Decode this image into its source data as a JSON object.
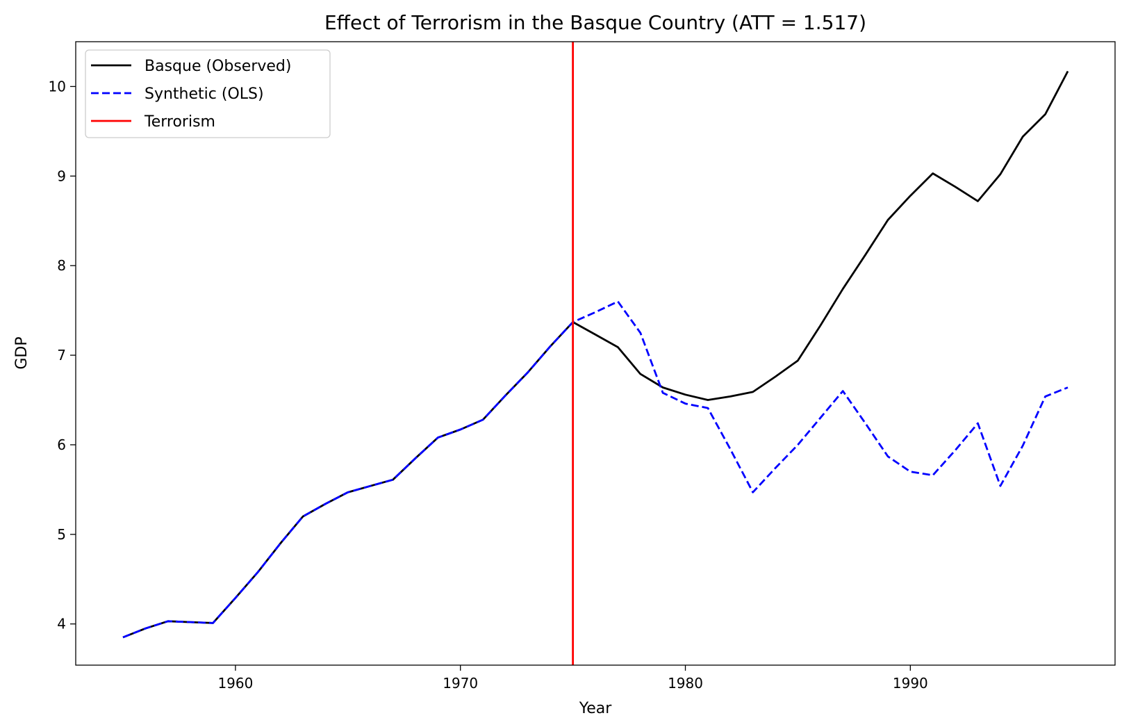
{
  "chart_data": {
    "type": "line",
    "title": "Effect of Terrorism in the Basque Country (ATT = 1.517)",
    "xlabel": "Year",
    "ylabel": "GDP",
    "xlim": [
      1952.9,
      1999.1
    ],
    "ylim": [
      3.54,
      10.5
    ],
    "xticks": [
      1960,
      1970,
      1980,
      1990
    ],
    "yticks": [
      4,
      5,
      6,
      7,
      8,
      9,
      10
    ],
    "grid": false,
    "legend_position": "top-left",
    "treatment_line": {
      "x": 1975,
      "label": "Terrorism",
      "color": "#ff0000"
    },
    "series": [
      {
        "name": "Basque (Observed)",
        "color": "#000000",
        "style": "solid",
        "x": [
          1955,
          1956,
          1957,
          1958,
          1959,
          1960,
          1961,
          1962,
          1963,
          1964,
          1965,
          1966,
          1967,
          1968,
          1969,
          1970,
          1971,
          1972,
          1973,
          1974,
          1975,
          1976,
          1977,
          1978,
          1979,
          1980,
          1981,
          1982,
          1983,
          1984,
          1985,
          1986,
          1987,
          1988,
          1989,
          1990,
          1991,
          1992,
          1993,
          1994,
          1995,
          1996,
          1997
        ],
        "y": [
          3.85,
          3.95,
          4.03,
          4.02,
          4.01,
          4.29,
          4.58,
          4.9,
          5.2,
          5.34,
          5.47,
          5.54,
          5.61,
          5.85,
          6.08,
          6.17,
          6.28,
          6.55,
          6.81,
          7.1,
          7.37,
          7.23,
          7.09,
          6.79,
          6.64,
          6.56,
          6.5,
          6.54,
          6.59,
          6.76,
          6.94,
          7.33,
          7.74,
          8.12,
          8.51,
          8.78,
          9.03,
          8.88,
          8.72,
          9.02,
          9.44,
          9.69,
          10.17
        ]
      },
      {
        "name": "Synthetic (OLS)",
        "color": "#0000ff",
        "style": "dashed",
        "x": [
          1955,
          1956,
          1957,
          1958,
          1959,
          1960,
          1961,
          1962,
          1963,
          1964,
          1965,
          1966,
          1967,
          1968,
          1969,
          1970,
          1971,
          1972,
          1973,
          1974,
          1975,
          1976,
          1977,
          1978,
          1979,
          1980,
          1981,
          1982,
          1983,
          1984,
          1985,
          1986,
          1987,
          1988,
          1989,
          1990,
          1991,
          1992,
          1993,
          1994,
          1995,
          1996,
          1997
        ],
        "y": [
          3.85,
          3.95,
          4.03,
          4.02,
          4.01,
          4.29,
          4.58,
          4.9,
          5.2,
          5.34,
          5.47,
          5.54,
          5.61,
          5.85,
          6.08,
          6.17,
          6.28,
          6.55,
          6.81,
          7.1,
          7.37,
          7.48,
          7.6,
          7.25,
          6.58,
          6.46,
          6.41,
          5.95,
          5.47,
          5.74,
          6.0,
          6.3,
          6.6,
          6.24,
          5.87,
          5.7,
          5.66,
          5.94,
          6.24,
          5.54,
          5.99,
          6.54,
          6.64
        ]
      }
    ]
  }
}
